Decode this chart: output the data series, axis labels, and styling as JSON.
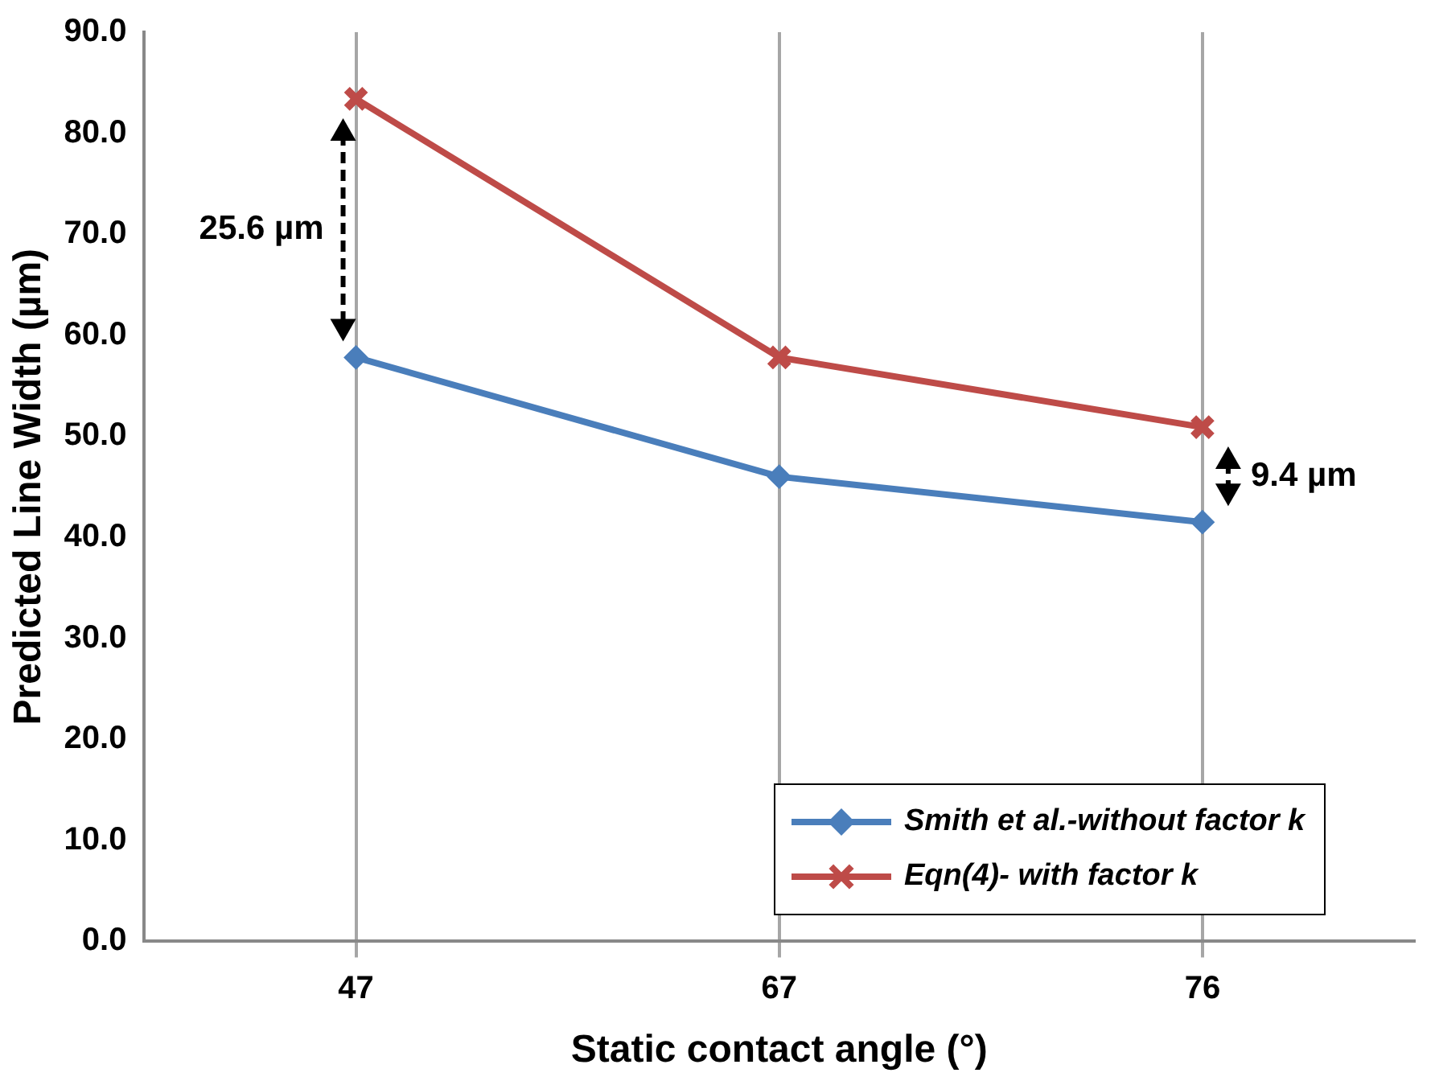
{
  "chart_data": {
    "type": "line",
    "xlabel": "Static contact angle (°)",
    "ylabel": "Predicted Line Width (µm)",
    "categories": [
      "47",
      "67",
      "76"
    ],
    "series": [
      {
        "name": "Smith et al.-without factor k",
        "color": "#4a7ebb",
        "marker": "diamond",
        "values": [
          57.8,
          46.0,
          41.5
        ]
      },
      {
        "name": "Eqn(4)- with factor k",
        "color": "#be4b48",
        "marker": "cross",
        "values": [
          83.4,
          57.8,
          50.9
        ]
      }
    ],
    "ylim": [
      0,
      90
    ],
    "yticks": [
      {
        "value": 0,
        "label": "0.0"
      },
      {
        "value": 10,
        "label": "10.0"
      },
      {
        "value": 20,
        "label": "20.0"
      },
      {
        "value": 30,
        "label": "30.0"
      },
      {
        "value": 40,
        "label": "40.0"
      },
      {
        "value": 50,
        "label": "50.0"
      },
      {
        "value": 60,
        "label": "60.0"
      },
      {
        "value": 70,
        "label": "70.0"
      },
      {
        "value": 80,
        "label": "80.0"
      },
      {
        "value": 90,
        "label": "90.0"
      }
    ],
    "grid": "x",
    "legend": "bottom right",
    "line_style": "solid",
    "annotations": [
      "25.6 µm",
      "9.4 µm"
    ]
  }
}
